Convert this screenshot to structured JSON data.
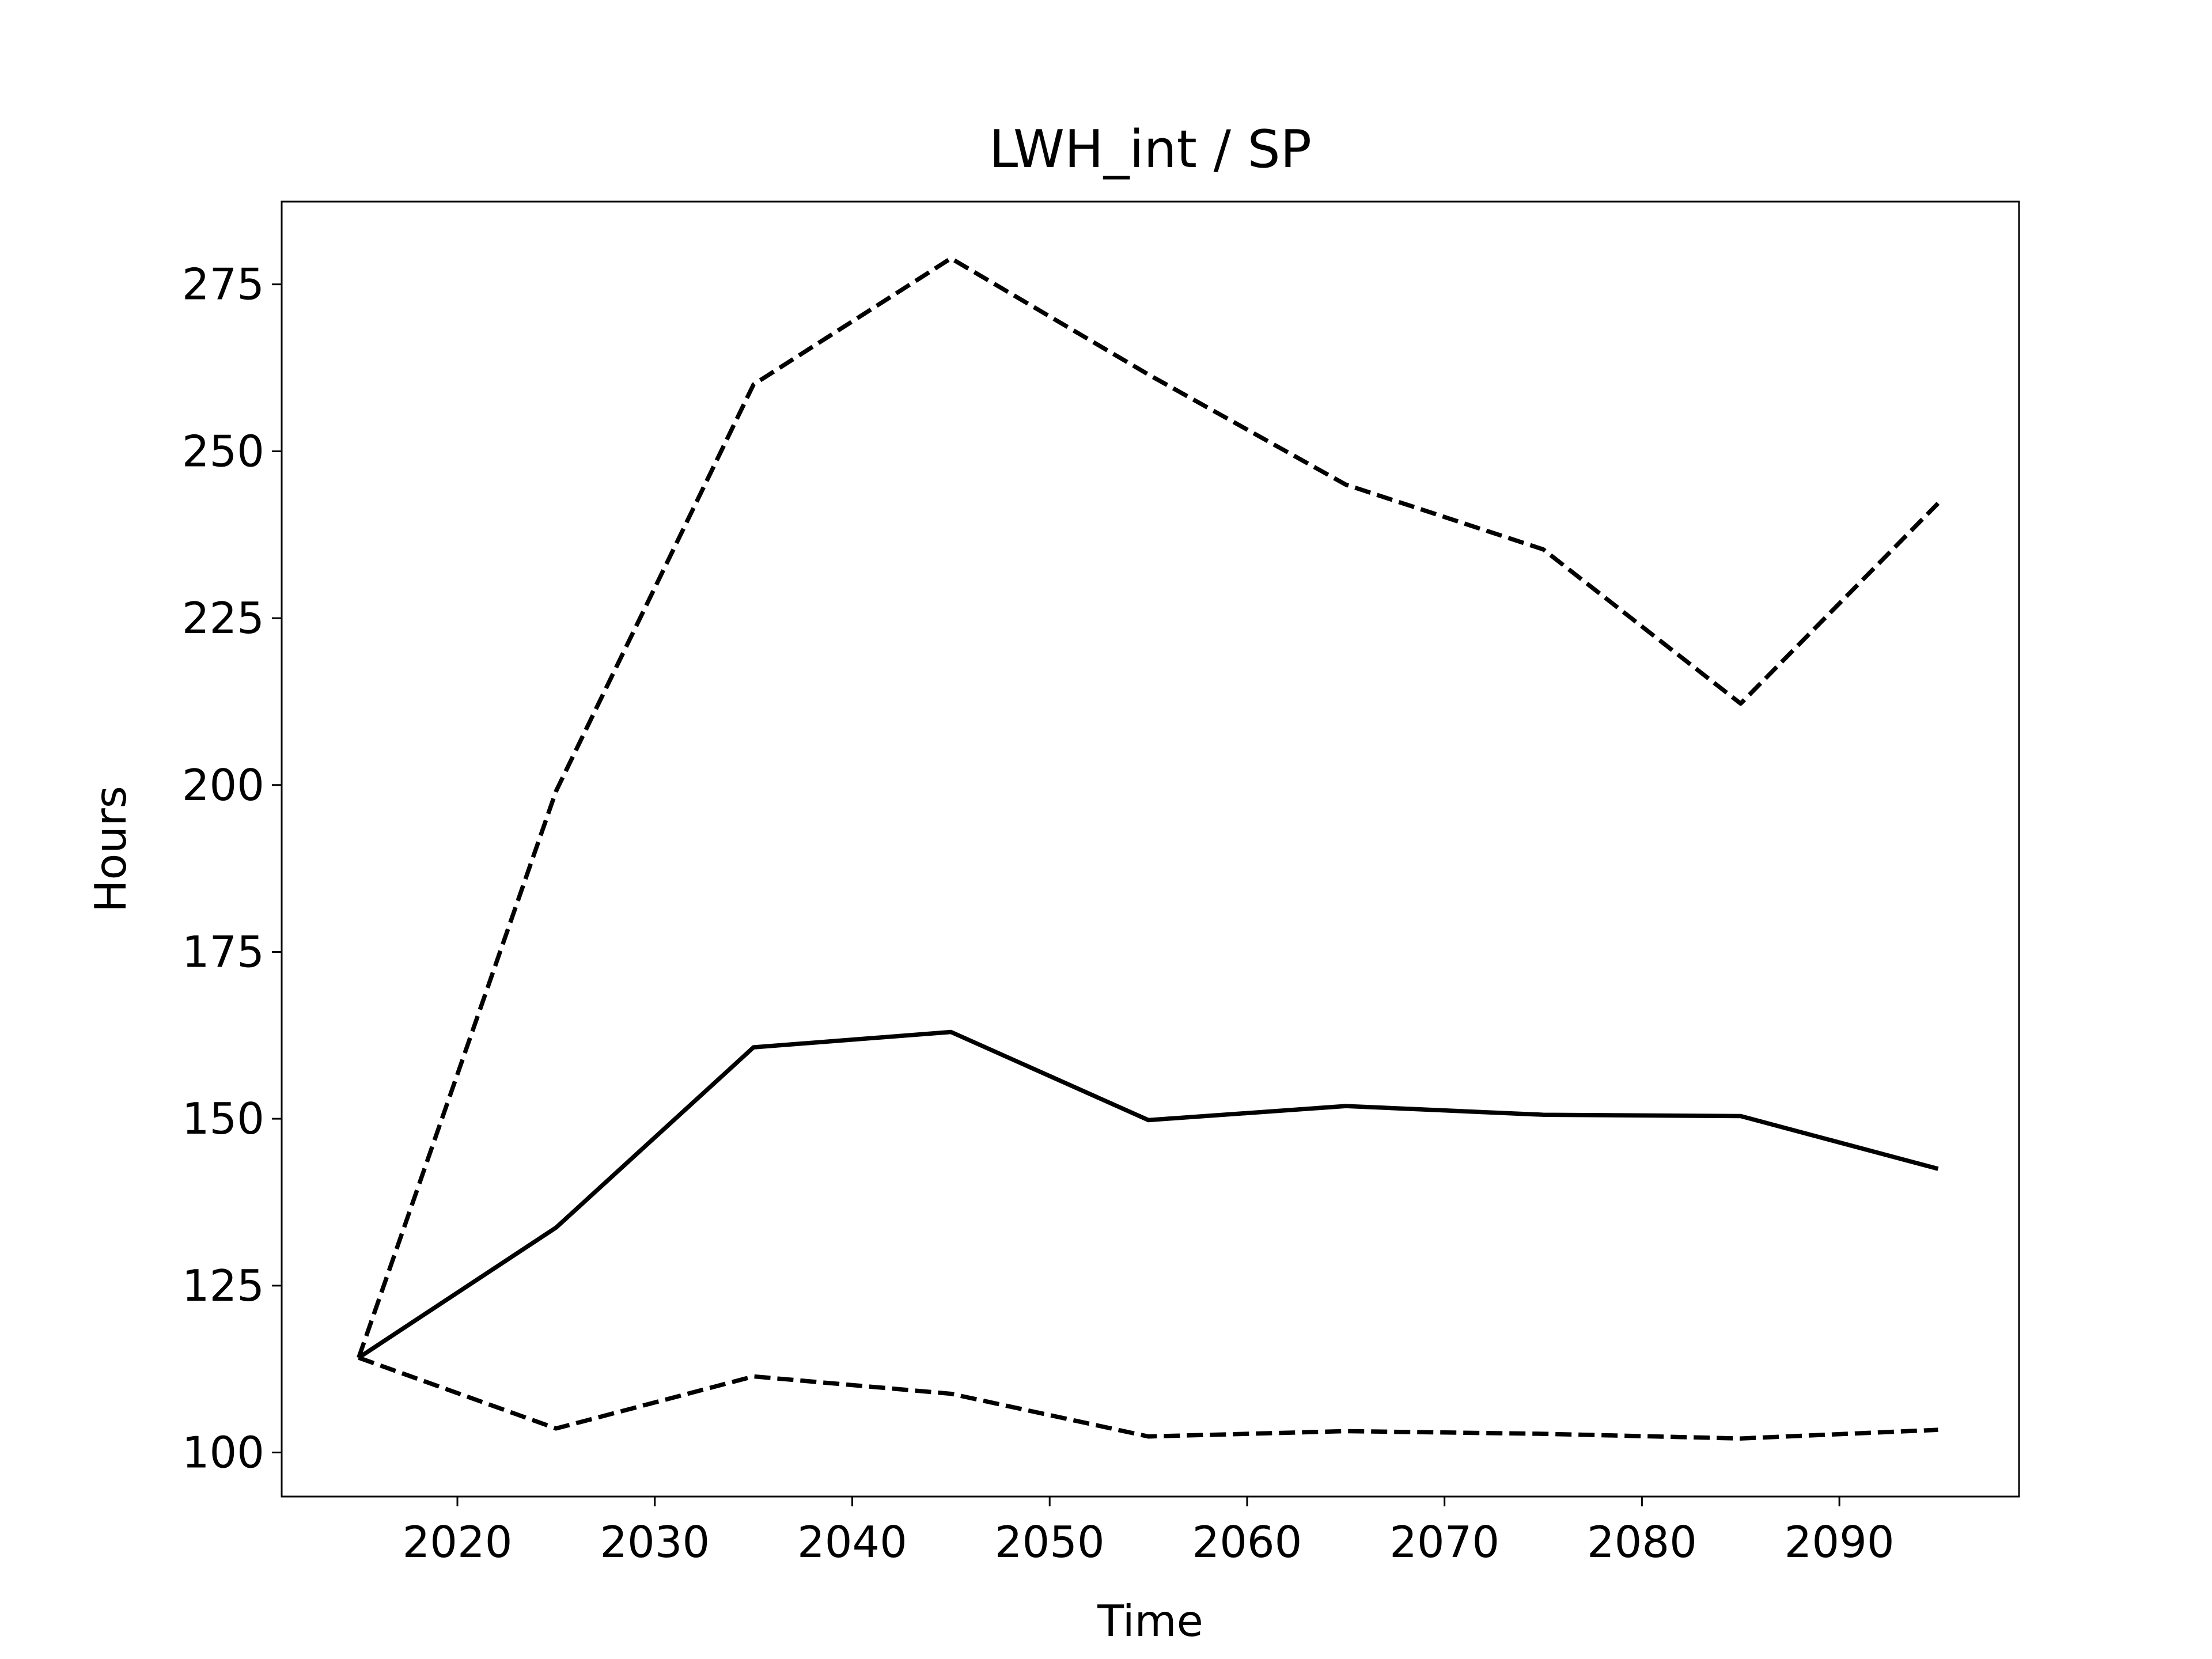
{
  "chart_data": {
    "type": "line",
    "title": "LWH_int / SP",
    "x_label": "Time",
    "y_label": "Hours",
    "x": [
      2015,
      2025,
      2035,
      2045,
      2055,
      2065,
      2075,
      2085,
      2095
    ],
    "series": [
      {
        "color": "#000000",
        "linestyle": "dashed",
        "values": [
          114.2,
          199.1,
          260.0,
          278.9,
          261.5,
          245.0,
          235.3,
          212.2,
          242.2
        ]
      },
      {
        "color": "#000000",
        "linestyle": "solid",
        "values": [
          114.2,
          133.7,
          160.7,
          163.0,
          149.8,
          151.9,
          150.6,
          150.4,
          142.5
        ]
      },
      {
        "color": "#000000",
        "linestyle": "dashed",
        "values": [
          114.2,
          103.6,
          111.4,
          108.8,
          102.4,
          103.2,
          102.8,
          102.1,
          103.4
        ]
      }
    ],
    "xlim": [
      2011.1,
      2099.1
    ],
    "xticks": [
      2020,
      2030,
      2040,
      2050,
      2060,
      2070,
      2080,
      2090
    ],
    "ylim": [
      93.4,
      287.4
    ],
    "yticks": [
      100,
      125,
      150,
      175,
      200,
      225,
      250,
      275
    ],
    "grid": false
  }
}
